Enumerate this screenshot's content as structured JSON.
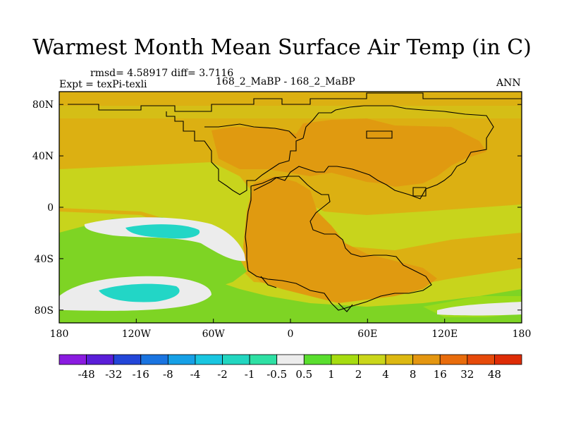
{
  "title": "Warmest Month Mean Surface Air Temp (in C)",
  "stats": "rmsd= 4.58917  diff= 3.7116",
  "expt": "Expt = texPi-texli",
  "subtitle": "168_2_MaBP - 168_2_MaBP",
  "season": "ANN",
  "map": {
    "projection": "cylindrical-equidistant",
    "lon_range": [
      -180,
      180
    ],
    "lat_range": [
      -90,
      90
    ],
    "x_ticks": [
      "180",
      "120W",
      "60W",
      "0",
      "60E",
      "120E",
      "180"
    ],
    "y_ticks": [
      "80N",
      "40N",
      "0",
      "40S",
      "80S"
    ]
  },
  "colorbar": {
    "labels": [
      "-48",
      "-32",
      "-16",
      "-8",
      "-4",
      "-2",
      "-1",
      "-0.5",
      "0.5",
      "1",
      "2",
      "4",
      "8",
      "16",
      "32",
      "48"
    ],
    "colors": [
      "#8a1be0",
      "#5a1ed8",
      "#2346d8",
      "#1a74e0",
      "#16a0e6",
      "#19c6e0",
      "#22d6c0",
      "#2ee0a4",
      "#ececec",
      "#5ade2e",
      "#a6dc10",
      "#cad61a",
      "#dcb812",
      "#e49610",
      "#e86c0c",
      "#e64a0a",
      "#de2c06"
    ]
  },
  "field_colors": {
    "warm_land": "#e09a10",
    "orange": "#dcb012",
    "yellow_green": "#c8d41c",
    "green": "#7ed424",
    "light": "#ececec",
    "cyan": "#22d6c6"
  }
}
